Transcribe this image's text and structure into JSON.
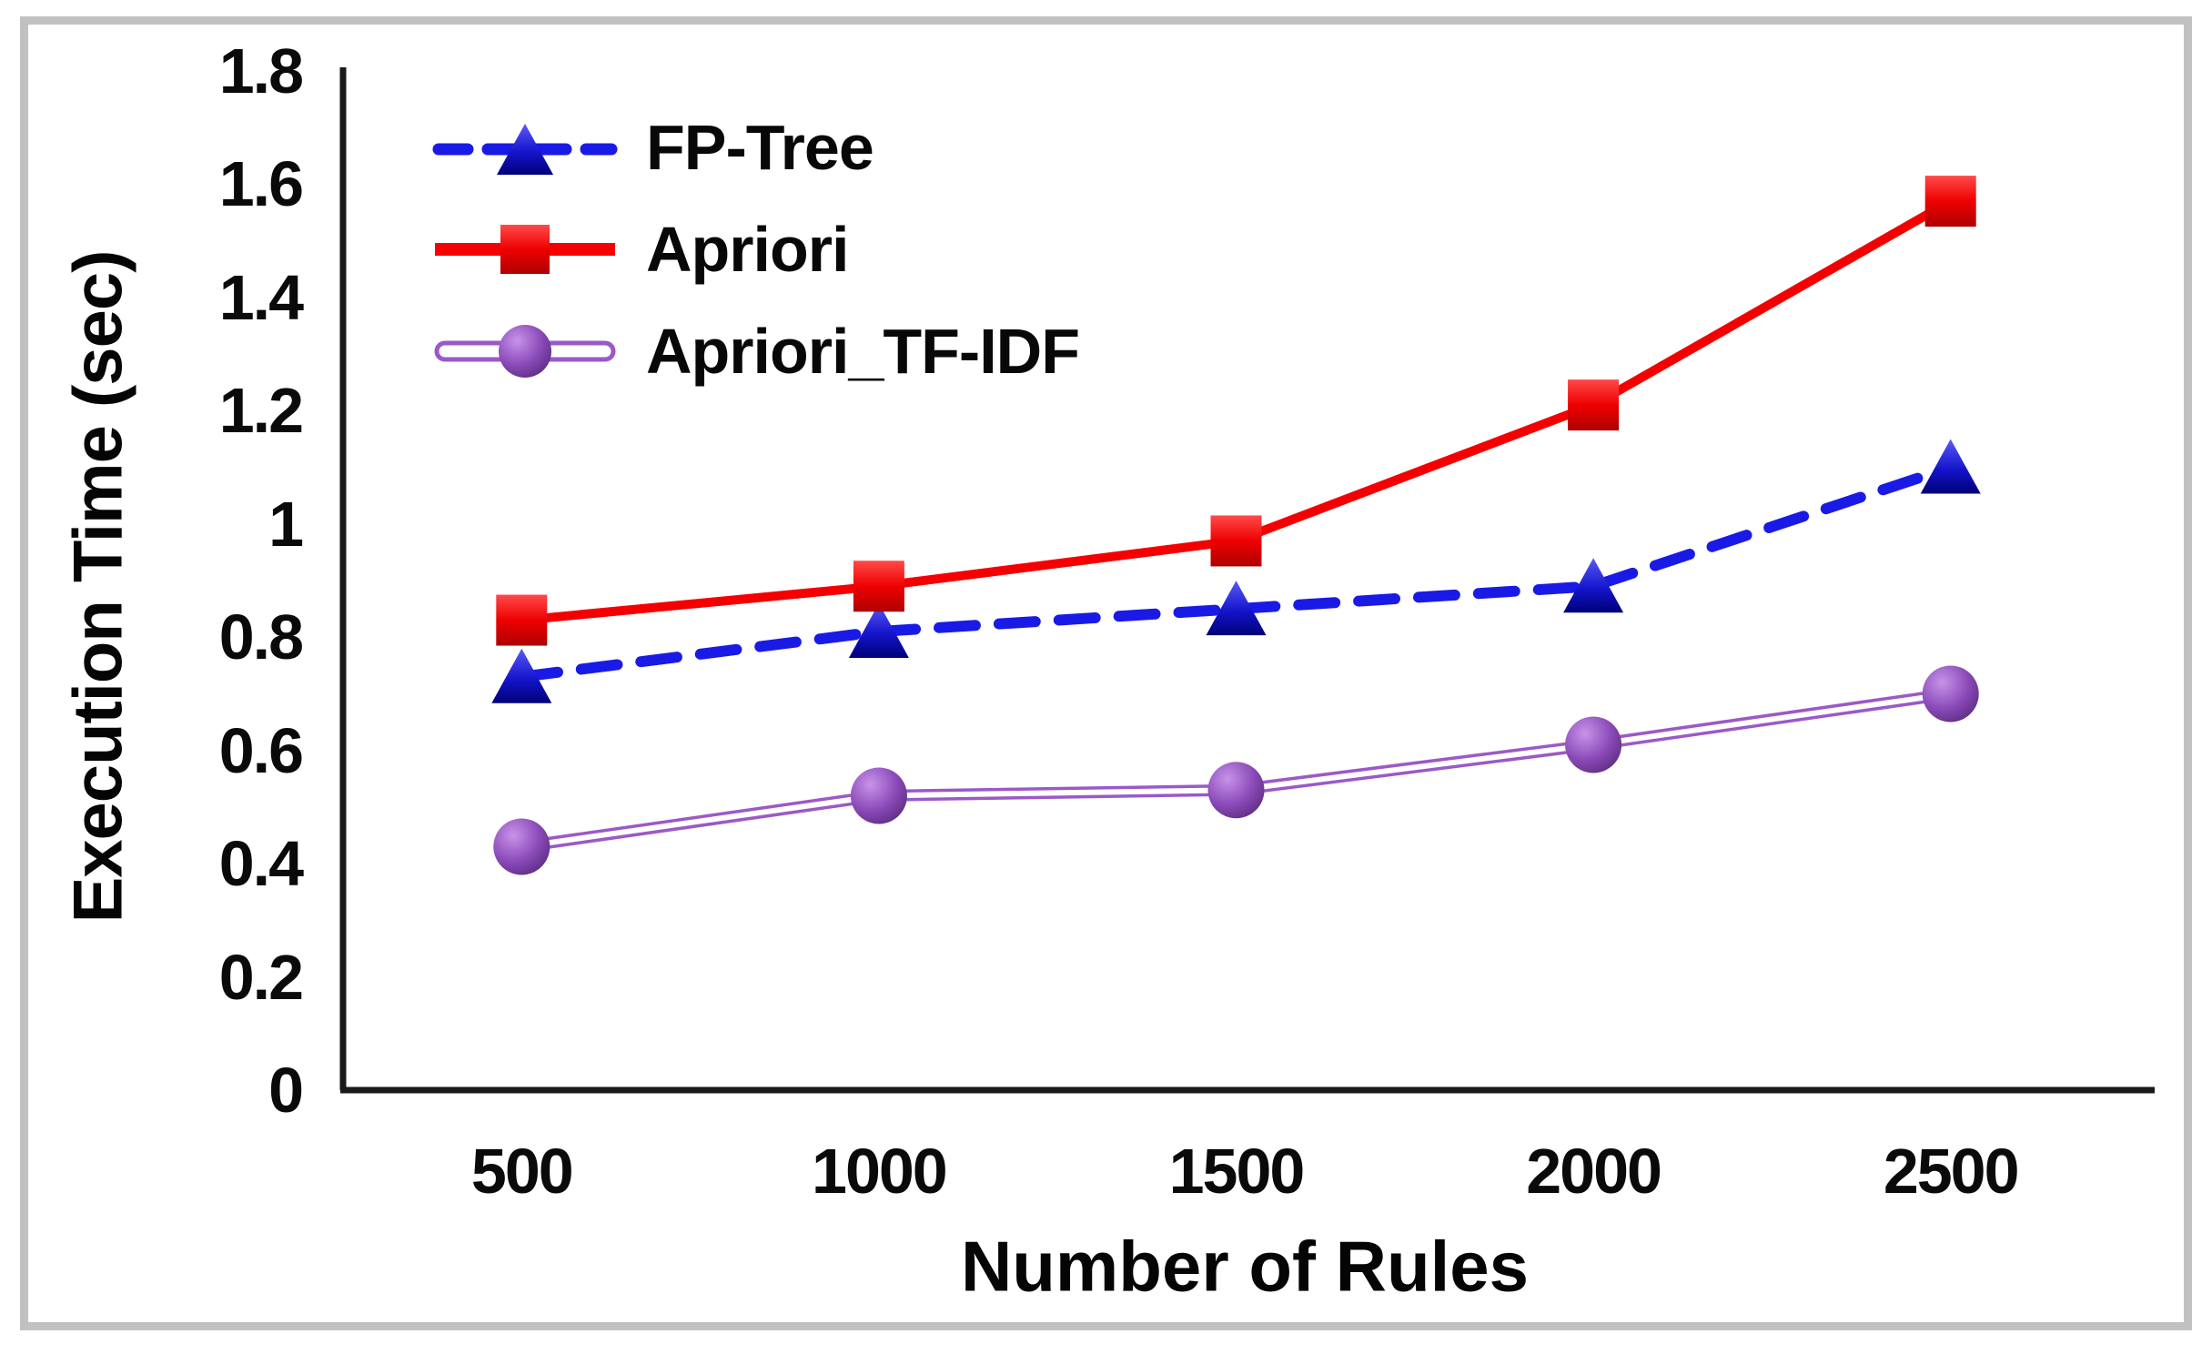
{
  "frame": {
    "border_color": "#c1c1c1"
  },
  "chart_data": {
    "type": "line",
    "title": "",
    "xlabel": "Number of Rules",
    "ylabel": "Execution Time (sec)",
    "categories": [
      "500",
      "1000",
      "1500",
      "2000",
      "2500"
    ],
    "y_tick_labels": [
      "0",
      "0.2",
      "0.4",
      "0.6",
      "0.8",
      "1",
      "1.2",
      "1.4",
      "1.6",
      "1.8"
    ],
    "ylim": [
      0,
      1.8
    ],
    "grid": false,
    "legend_position": "inside-top-left",
    "axis_color": "#1a1a1a",
    "series": [
      {
        "name": "FP-Tree",
        "values": [
          0.73,
          0.81,
          0.85,
          0.89,
          1.1
        ],
        "color": "#1a1ae6",
        "line_style": "dashed",
        "marker": "triangle"
      },
      {
        "name": "Apriori",
        "values": [
          0.83,
          0.89,
          0.97,
          1.21,
          1.57
        ],
        "color": "#f40000",
        "line_style": "solid",
        "marker": "square"
      },
      {
        "name": "Apriori_TF-IDF",
        "values": [
          0.43,
          0.52,
          0.53,
          0.61,
          0.7
        ],
        "color": "#9b59c8",
        "marker_color": "#7b3da5",
        "line_style": "double",
        "marker": "circle"
      }
    ]
  }
}
